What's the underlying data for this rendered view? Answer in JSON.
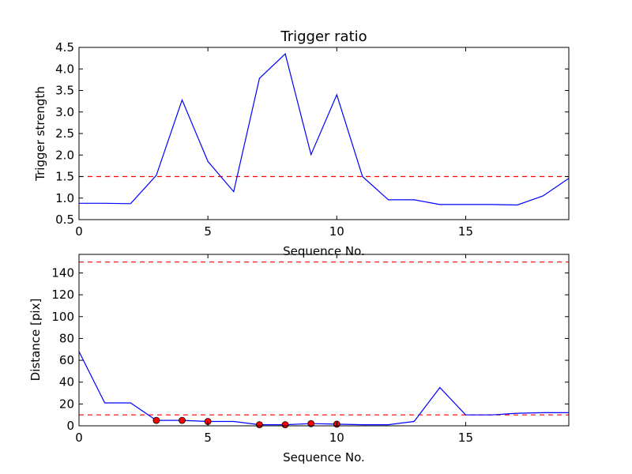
{
  "chart_data": [
    {
      "type": "line",
      "title": "Trigger ratio",
      "xlabel": "Sequence No.",
      "ylabel": "Trigger strength",
      "xlim": [
        0,
        19
      ],
      "ylim": [
        0.5,
        4.5
      ],
      "x_ticks": [
        "0",
        "5",
        "10",
        "15"
      ],
      "y_ticks": [
        "0.5",
        "1.0",
        "1.5",
        "2.0",
        "2.5",
        "3.0",
        "3.5",
        "4.0",
        "4.5"
      ],
      "grid": false,
      "series": [
        {
          "color": "#0000ff",
          "x": [
            0,
            1,
            2,
            3,
            4,
            5,
            6,
            7,
            8,
            9,
            10,
            11,
            12,
            13,
            14,
            15,
            16,
            17,
            18,
            19
          ],
          "y": [
            0.88,
            0.88,
            0.87,
            1.53,
            3.28,
            1.85,
            1.15,
            3.78,
            4.35,
            2.01,
            3.4,
            1.5,
            0.96,
            0.96,
            0.85,
            0.85,
            0.85,
            0.84,
            1.05,
            1.46
          ]
        }
      ],
      "thresholds": [
        {
          "y": 1.5,
          "color": "#ff0000",
          "style": "dashed"
        }
      ]
    },
    {
      "type": "line",
      "title": "",
      "xlabel": "Sequence No.",
      "ylabel": "Distance [pix]",
      "xlim": [
        0,
        19
      ],
      "ylim": [
        0,
        157
      ],
      "x_ticks": [
        "0",
        "5",
        "10",
        "15"
      ],
      "y_ticks": [
        "0",
        "20",
        "40",
        "60",
        "80",
        "100",
        "120",
        "140"
      ],
      "grid": false,
      "series": [
        {
          "color": "#0000ff",
          "x": [
            0,
            1,
            2,
            3,
            4,
            5,
            6,
            7,
            8,
            9,
            10,
            11,
            12,
            13,
            14,
            15,
            16,
            17,
            18,
            19
          ],
          "y": [
            68,
            21,
            21,
            5,
            5,
            4,
            4,
            1,
            1,
            2,
            1.5,
            1,
            1,
            4,
            35,
            10,
            10,
            11.5,
            12,
            12
          ]
        }
      ],
      "markers": {
        "color": "#ff0000",
        "x": [
          3,
          4,
          5,
          7,
          8,
          9,
          10
        ],
        "y": [
          5,
          5,
          4,
          1,
          1,
          2,
          1.5
        ]
      },
      "thresholds": [
        {
          "y": 150,
          "color": "#ff0000",
          "style": "dashed"
        },
        {
          "y": 10,
          "color": "#ff0000",
          "style": "dashed"
        }
      ]
    }
  ]
}
